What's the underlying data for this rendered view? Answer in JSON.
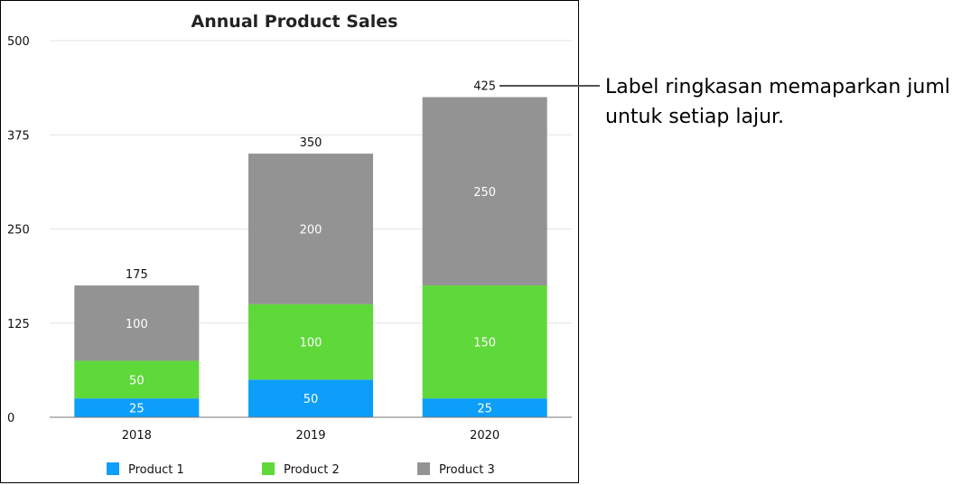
{
  "chart_data": {
    "type": "bar",
    "stacked": true,
    "title": "Annual Product Sales",
    "xlabel": "",
    "ylabel": "",
    "categories": [
      "2018",
      "2019",
      "2020"
    ],
    "series": [
      {
        "name": "Product 1",
        "color": "#0c9ef8",
        "values": [
          25,
          50,
          25
        ]
      },
      {
        "name": "Product 2",
        "color": "#5fd83a",
        "values": [
          50,
          100,
          150
        ]
      },
      {
        "name": "Product 3",
        "color": "#939393",
        "values": [
          100,
          200,
          250
        ]
      }
    ],
    "totals": [
      175,
      350,
      425
    ],
    "ylim": [
      0,
      500
    ],
    "yticks": [
      0,
      125,
      250,
      375,
      500
    ],
    "grid": true,
    "legend": "bottom"
  },
  "callout": {
    "lines": [
      "Label ringkasan memaparkan juml",
      "untuk setiap lajur."
    ]
  }
}
